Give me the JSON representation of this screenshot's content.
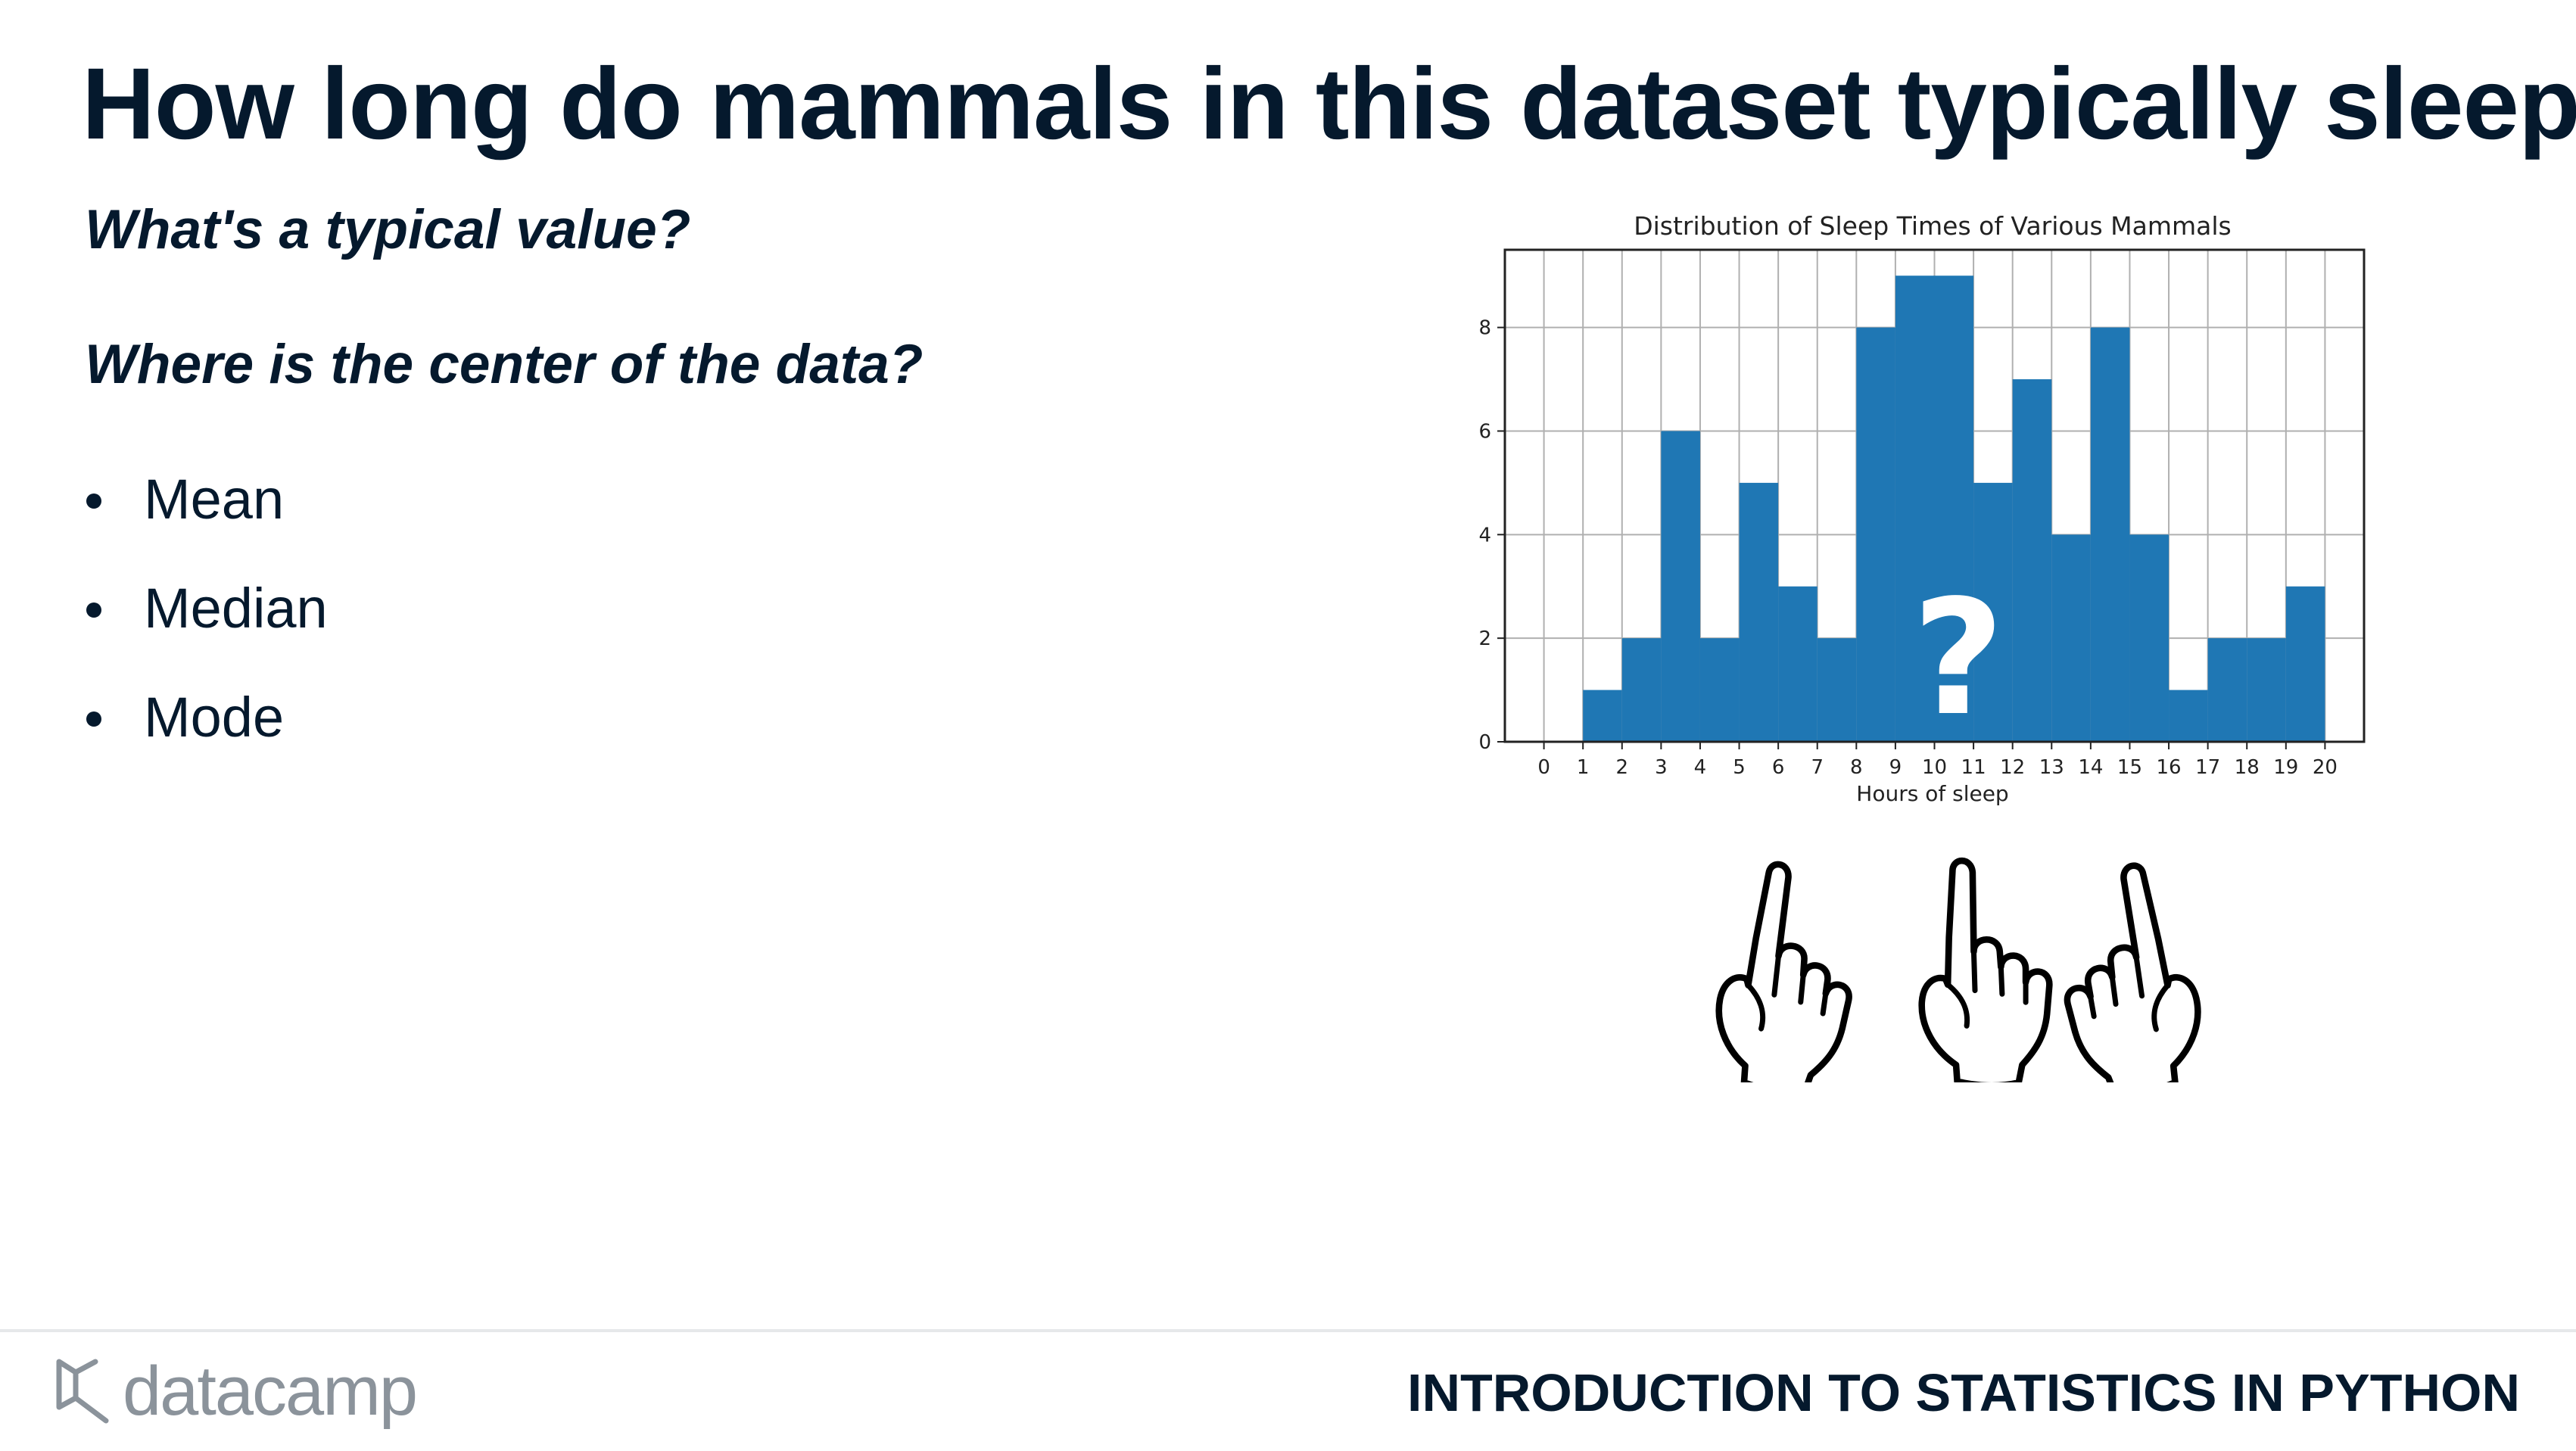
{
  "slide": {
    "title": "How long do mammals in this dataset typically sleep?",
    "questions": [
      "What's a typical value?",
      "Where is the center of the data?"
    ],
    "bullets": [
      "Mean",
      "Median",
      "Mode"
    ]
  },
  "chart_data": {
    "type": "bar",
    "title": "Distribution of Sleep Times of Various Mammals",
    "xlabel": "Hours of sleep",
    "ylabel": "",
    "x_ticks": [
      "0",
      "1",
      "2",
      "3",
      "4",
      "5",
      "6",
      "7",
      "8",
      "9",
      "10",
      "11",
      "12",
      "13",
      "14",
      "15",
      "16",
      "17",
      "18",
      "19",
      "20"
    ],
    "y_ticks": [
      "0",
      "2",
      "4",
      "6",
      "8"
    ],
    "xlim": [
      -1,
      21
    ],
    "ylim": [
      0,
      9.5
    ],
    "grid": true,
    "bins": [
      {
        "start": 1,
        "end": 2,
        "value": 1
      },
      {
        "start": 2,
        "end": 3,
        "value": 2
      },
      {
        "start": 3,
        "end": 4,
        "value": 6
      },
      {
        "start": 4,
        "end": 5,
        "value": 2
      },
      {
        "start": 5,
        "end": 6,
        "value": 5
      },
      {
        "start": 6,
        "end": 7,
        "value": 3
      },
      {
        "start": 7,
        "end": 8,
        "value": 2
      },
      {
        "start": 8,
        "end": 9,
        "value": 8
      },
      {
        "start": 9,
        "end": 10,
        "value": 9
      },
      {
        "start": 10,
        "end": 11,
        "value": 9
      },
      {
        "start": 11,
        "end": 12,
        "value": 5
      },
      {
        "start": 12,
        "end": 13,
        "value": 7
      },
      {
        "start": 13,
        "end": 14,
        "value": 4
      },
      {
        "start": 14,
        "end": 15,
        "value": 8
      },
      {
        "start": 15,
        "end": 16,
        "value": 4
      },
      {
        "start": 16,
        "end": 17,
        "value": 1
      },
      {
        "start": 17,
        "end": 18,
        "value": 2
      },
      {
        "start": 18,
        "end": 19,
        "value": 2
      },
      {
        "start": 19,
        "end": 20,
        "value": 3
      }
    ],
    "bar_color": "#1f77b4",
    "overlay_mark": "?"
  },
  "illustration": {
    "icons": [
      "pointing-hand-icon",
      "pointing-hand-icon",
      "pointing-hand-icon"
    ]
  },
  "footer": {
    "brand": "datacamp",
    "course": "INTRODUCTION TO STATISTICS IN PYTHON"
  },
  "colors": {
    "text": "#05192d",
    "bar": "#1f77b4",
    "logo_gray": "#8b939b"
  }
}
